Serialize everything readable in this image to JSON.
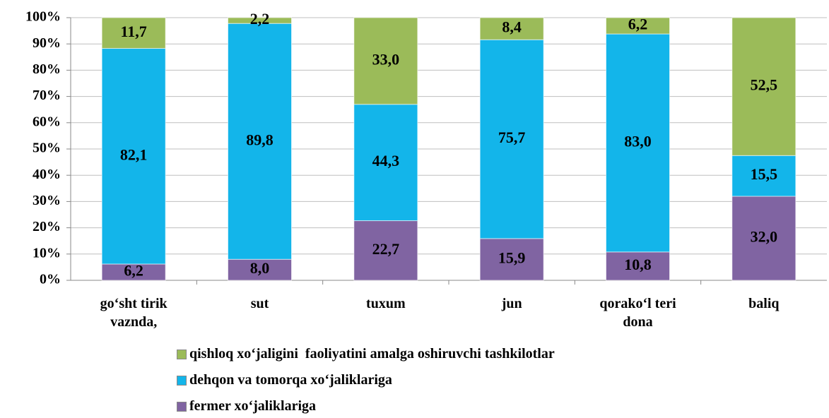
{
  "chart_data": {
    "type": "stacked_bar",
    "categories": [
      "go‘sht tirik vaznda,",
      "sut",
      "tuxum",
      "jun",
      "qorako‘l   teri dona",
      "baliq"
    ],
    "series": [
      {
        "name": "fermer xo‘jaliklariga",
        "color": "#8064a2",
        "values": [
          6.2,
          8.0,
          22.7,
          15.9,
          10.8,
          32.0
        ],
        "value_labels": [
          "6,2",
          "8,0",
          "22,7",
          "15,9",
          "10,8",
          "32,0"
        ]
      },
      {
        "name": "dehqon va tomorqa xo‘jaliklariga",
        "color": "#13b5ea",
        "values": [
          82.1,
          89.8,
          44.3,
          75.7,
          83.0,
          15.5
        ],
        "value_labels": [
          "82,1",
          "89,8",
          "44,3",
          "75,7",
          "83,0",
          "15,5"
        ]
      },
      {
        "name": "qishloq xo‘jaligini  faoliyatini amalga oshiruvchi tashkilotlar",
        "color": "#9bbb59",
        "values": [
          11.7,
          2.2,
          33.0,
          8.4,
          6.2,
          52.5
        ],
        "value_labels": [
          "11,7",
          "2,2",
          "33,0",
          "8,4",
          "6,2",
          "52,5"
        ]
      }
    ],
    "ylim": [
      0,
      100
    ],
    "yticks": [
      {
        "value": 0,
        "label": "0%"
      },
      {
        "value": 10,
        "label": "10%"
      },
      {
        "value": 20,
        "label": "20%"
      },
      {
        "value": 30,
        "label": "30%"
      },
      {
        "value": 40,
        "label": "40%"
      },
      {
        "value": 50,
        "label": "50%"
      },
      {
        "value": 60,
        "label": "60%"
      },
      {
        "value": 70,
        "label": "70%"
      },
      {
        "value": 80,
        "label": "80%"
      },
      {
        "value": 90,
        "label": "90%"
      },
      {
        "value": 100,
        "label": "100%"
      }
    ],
    "grid": true,
    "legend": "bottom"
  }
}
